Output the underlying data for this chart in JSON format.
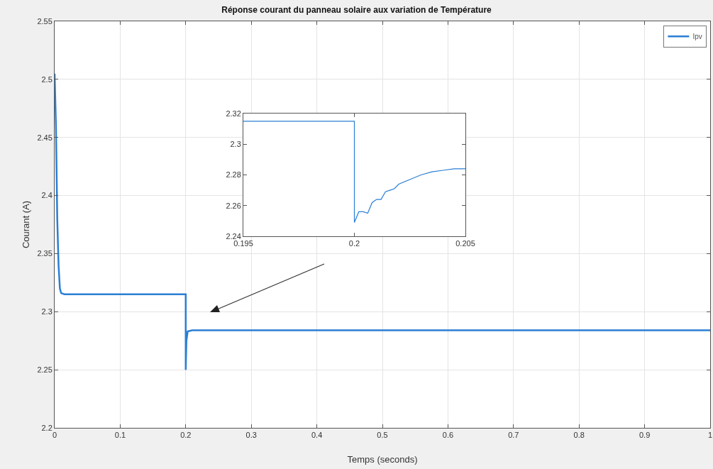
{
  "chart_data": [
    {
      "type": "line",
      "title": "Réponse courant du panneau solaire aux variation de Température",
      "xlabel": "Temps (seconds)",
      "ylabel": "Courant (A)",
      "xlim": [
        0,
        1
      ],
      "xticks": [
        0,
        0.1,
        0.2,
        0.3,
        0.4,
        0.5,
        0.6,
        0.7,
        0.8,
        0.9,
        1
      ],
      "ylim": [
        2.2,
        2.55
      ],
      "yticks": [
        2.2,
        2.25,
        2.3,
        2.35,
        2.4,
        2.45,
        2.5,
        2.55
      ],
      "grid": true,
      "legend": "top right",
      "line_style": "solid",
      "marker": "none",
      "series": [
        {
          "name": "Ipv",
          "color": "#2a7fd4",
          "x": [
            0,
            0.002,
            0.004,
            0.006,
            0.008,
            0.01,
            0.015,
            0.2,
            0.2,
            0.201,
            0.203,
            0.21,
            1
          ],
          "values": [
            2.505,
            2.46,
            2.38,
            2.34,
            2.32,
            2.316,
            2.315,
            2.315,
            2.25,
            2.275,
            2.283,
            2.284,
            2.284
          ]
        }
      ]
    },
    {
      "type": "line",
      "xlim": [
        0.195,
        0.205
      ],
      "xticks": [
        0.195,
        0.2,
        0.205
      ],
      "ylim": [
        2.24,
        2.32
      ],
      "yticks": [
        2.24,
        2.26,
        2.28,
        2.3,
        2.32
      ],
      "grid": false,
      "legend": false,
      "line_style": "solid",
      "marker": "none",
      "series": [
        {
          "color": "#2a7fd4",
          "x": [
            0.195,
            0.2,
            0.2,
            0.2002,
            0.2004,
            0.2006,
            0.2008,
            0.201,
            0.2012,
            0.2014,
            0.2016,
            0.2018,
            0.202,
            0.2025,
            0.203,
            0.2035,
            0.204,
            0.2045,
            0.205
          ],
          "values": [
            2.315,
            2.315,
            2.249,
            2.256,
            2.256,
            2.255,
            2.262,
            2.264,
            2.264,
            2.269,
            2.27,
            2.271,
            2.274,
            2.277,
            2.28,
            2.282,
            2.283,
            2.284,
            2.284
          ]
        }
      ]
    }
  ]
}
